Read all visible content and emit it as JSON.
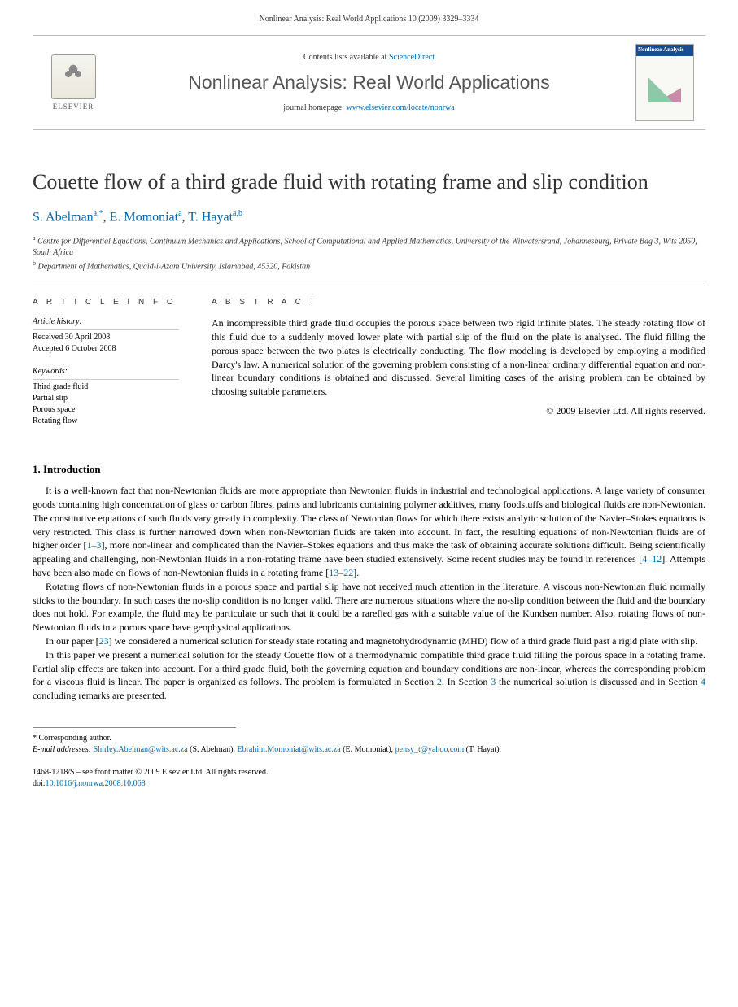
{
  "header": {
    "citation": "Nonlinear Analysis: Real World Applications 10 (2009) 3329–3334"
  },
  "banner": {
    "publisher": "ELSEVIER",
    "contents_prefix": "Contents lists available at ",
    "contents_link": "ScienceDirect",
    "journal_name": "Nonlinear Analysis: Real World Applications",
    "homepage_prefix": "journal homepage: ",
    "homepage_url": "www.elsevier.com/locate/nonrwa",
    "cover_title": "Nonlinear Analysis"
  },
  "article": {
    "title": "Couette flow of a third grade fluid with rotating frame and slip condition",
    "authors": [
      {
        "name": "S. Abelman",
        "marks": "a,*"
      },
      {
        "name": "E. Momoniat",
        "marks": "a"
      },
      {
        "name": "T. Hayat",
        "marks": "a,b"
      }
    ],
    "affiliations": [
      {
        "mark": "a",
        "text": "Centre for Differential Equations, Continuum Mechanics and Applications, School of Computational and Applied Mathematics, University of the Witwatersrand, Johannesburg, Private Bag 3, Wits 2050, South Africa"
      },
      {
        "mark": "b",
        "text": "Department of Mathematics, Quaid-i-Azam University, Islamabad, 45320, Pakistan"
      }
    ]
  },
  "info": {
    "heading": "A R T I C L E   I N F O",
    "history_title": "Article history:",
    "history_lines": [
      "Received 30 April 2008",
      "Accepted 6 October 2008"
    ],
    "keywords_title": "Keywords:",
    "keywords": [
      "Third grade fluid",
      "Partial slip",
      "Porous space",
      "Rotating flow"
    ]
  },
  "abstract": {
    "heading": "A B S T R A C T",
    "text": "An incompressible third grade fluid occupies the porous space between two rigid infinite plates. The steady rotating flow of this fluid due to a suddenly moved lower plate with partial slip of the fluid on the plate is analysed. The fluid filling the porous space between the two plates is electrically conducting. The flow modeling is developed by employing a modified Darcy's law. A numerical solution of the governing problem consisting of a non-linear ordinary differential equation and non-linear boundary conditions is obtained and discussed. Several limiting cases of the arising problem can be obtained by choosing suitable parameters.",
    "copyright": "© 2009 Elsevier Ltd. All rights reserved."
  },
  "body": {
    "section1_heading": "1. Introduction",
    "para1": "It is a well-known fact that non-Newtonian fluids are more appropriate than Newtonian fluids in industrial and technological applications. A large variety of consumer goods containing high concentration of glass or carbon fibres, paints and lubricants containing polymer additives, many foodstuffs and biological fluids are non-Newtonian. The constitutive equations of such fluids vary greatly in complexity. The class of Newtonian flows for which there exists analytic solution of the Navier–Stokes equations is very restricted. This class is further narrowed down when non-Newtonian fluids are taken into account. In fact, the resulting equations of non-Newtonian fluids are of higher order [1–3], more non-linear and complicated than the Navier–Stokes equations and thus make the task of obtaining accurate solutions difficult. Being scientifically appealing and challenging, non-Newtonian fluids in a non-rotating frame have been studied extensively. Some recent studies may be found in references [4–12]. Attempts have been also made on flows of non-Newtonian fluids in a rotating frame [13–22].",
    "para2": "Rotating flows of non-Newtonian fluids in a porous space and partial slip have not received much attention in the literature. A viscous non-Newtonian fluid normally sticks to the boundary. In such cases the no-slip condition is no longer valid. There are numerous situations where the no-slip condition between the fluid and the boundary does not hold. For example, the fluid may be particulate or such that it could be a rarefied gas with a suitable value of the Kundsen number. Also, rotating flows of non-Newtonian fluids in a porous space have geophysical applications.",
    "para3": "In our paper [23] we considered a numerical solution for steady state rotating and magnetohydrodynamic (MHD) flow of a third grade fluid past a rigid plate with slip.",
    "para4": "In this paper we present a numerical solution for the steady Couette flow of a thermodynamic compatible third grade fluid filling the porous space in a rotating frame. Partial slip effects are taken into account. For a third grade fluid, both the governing equation and boundary conditions are non-linear, whereas the corresponding problem for a viscous fluid is linear. The paper is organized as follows. The problem is formulated in Section 2. In Section 3 the numerical solution is discussed and in Section 4 concluding remarks are presented."
  },
  "footnotes": {
    "corresponding": "Corresponding author.",
    "email_label": "E-mail addresses:",
    "emails": [
      {
        "addr": "Shirley.Abelman@wits.ac.za",
        "who": "(S. Abelman)"
      },
      {
        "addr": "Ebrahim.Momoniat@wits.ac.za",
        "who": "(E. Momoniat)"
      },
      {
        "addr": "pensy_t@yahoo.com",
        "who": "(T. Hayat)"
      }
    ]
  },
  "footer": {
    "issn_line": "1468-1218/$ – see front matter © 2009 Elsevier Ltd. All rights reserved.",
    "doi_label": "doi:",
    "doi": "10.1016/j.nonrwa.2008.10.068"
  },
  "refs": {
    "r1_3": "1–3",
    "r4_12": "4–12",
    "r13_22": "13–22",
    "r23": "23",
    "s2": "2",
    "s3": "3",
    "s4": "4"
  }
}
